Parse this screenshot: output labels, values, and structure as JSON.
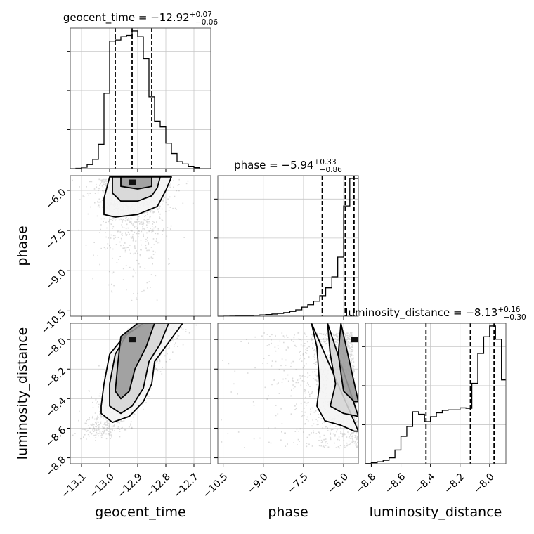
{
  "chart_data": {
    "type": "corner",
    "parameters": [
      "geocent_time",
      "phase",
      "luminosity_distance"
    ],
    "axis_labels": [
      "geocent_time",
      "phase",
      "luminosity_distance"
    ],
    "ranges": {
      "geocent_time": [
        -13.14,
        -12.64
      ],
      "phase": [
        -10.7,
        -5.45
      ],
      "luminosity_distance": [
        -8.84,
        -7.89
      ]
    },
    "ticks": {
      "geocent_time": {
        "values": [
          -13.1,
          -13.0,
          -12.9,
          -12.8,
          -12.7
        ],
        "labels": [
          "−13.1",
          "−13.0",
          "−12.9",
          "−12.8",
          "−12.7"
        ]
      },
      "phase": {
        "values": [
          -10.5,
          -9.0,
          -7.5,
          -6.0
        ],
        "labels": [
          "−10.5",
          "−9.0",
          "−7.5",
          "−6.0"
        ]
      },
      "luminosity_distance": {
        "values": [
          -8.8,
          -8.6,
          -8.4,
          -8.2,
          -8.0
        ],
        "labels": [
          "−8.8",
          "−8.6",
          "−8.4",
          "−8.2",
          "−8.0"
        ]
      }
    },
    "summaries": [
      {
        "param": "geocent_time",
        "prefix": "geocent_time = ",
        "median": "−12.92",
        "plus": "+0.07",
        "minus": "−0.06",
        "quantiles": [
          -12.98,
          -12.92,
          -12.85
        ]
      },
      {
        "param": "phase",
        "prefix": "phase = ",
        "median": "−5.94",
        "plus": "+0.33",
        "minus": "−0.86",
        "quantiles": [
          -6.8,
          -5.94,
          -5.61
        ]
      },
      {
        "param": "luminosity_distance",
        "prefix": "luminosity_distance = ",
        "median": "−8.13",
        "plus": "+0.16",
        "minus": "−0.30",
        "quantiles": [
          -8.43,
          -8.13,
          -7.97
        ]
      }
    ],
    "histograms": {
      "geocent_time": {
        "bin_edges": [
          -13.14,
          -13.12,
          -13.1,
          -13.08,
          -13.06,
          -13.04,
          -13.02,
          -13.0,
          -12.98,
          -12.96,
          -12.94,
          -12.92,
          -12.9,
          -12.88,
          -12.86,
          -12.84,
          -12.82,
          -12.8,
          -12.78,
          -12.76,
          -12.74,
          -12.72,
          -12.7,
          -12.68,
          -12.66,
          -12.64
        ],
        "counts": [
          0,
          3,
          12,
          35,
          80,
          210,
          650,
          1100,
          1110,
          1140,
          1150,
          1190,
          1140,
          950,
          620,
          410,
          360,
          220,
          130,
          60,
          40,
          20,
          8,
          0,
          0
        ]
      },
      "phase": {
        "bin_edges": [
          -10.7,
          -10.48,
          -10.25,
          -10.03,
          -9.8,
          -9.58,
          -9.36,
          -9.13,
          -8.91,
          -8.68,
          -8.46,
          -8.24,
          -8.01,
          -7.79,
          -7.56,
          -7.34,
          -7.12,
          -6.89,
          -6.67,
          -6.44,
          -6.22,
          -6.0,
          -5.77,
          -5.55,
          -5.45
        ],
        "counts": [
          0,
          2,
          4,
          8,
          12,
          18,
          24,
          32,
          42,
          55,
          70,
          90,
          120,
          160,
          230,
          290,
          380,
          520,
          720,
          1000,
          1500,
          2800,
          3500,
          3500
        ]
      },
      "luminosity_distance": {
        "bin_edges": [
          -8.84,
          -8.8,
          -8.76,
          -8.72,
          -8.68,
          -8.64,
          -8.6,
          -8.56,
          -8.52,
          -8.48,
          -8.44,
          -8.4,
          -8.36,
          -8.32,
          -8.28,
          -8.24,
          -8.2,
          -8.16,
          -8.12,
          -8.08,
          -8.04,
          -8.0,
          -7.96,
          -7.92,
          -7.89
        ],
        "counts": [
          5,
          20,
          40,
          70,
          120,
          280,
          560,
          760,
          1060,
          1010,
          860,
          960,
          1040,
          1090,
          1100,
          1100,
          1140,
          1130,
          1640,
          2250,
          2590,
          2810,
          2540,
          1710
        ]
      }
    },
    "density_2d": [
      {
        "x": "geocent_time",
        "y": "phase",
        "mode": [
          -12.92,
          -5.7
        ],
        "contour_levels": [
          "0.39",
          "0.86",
          "0.99"
        ],
        "contours": [
          [
            [
              -13.0,
              -5.5
            ],
            [
              -13.02,
              -6.3
            ],
            [
              -13.02,
              -6.9
            ],
            [
              -12.98,
              -7.0
            ],
            [
              -12.9,
              -6.9
            ],
            [
              -12.83,
              -6.6
            ],
            [
              -12.8,
              -6.0
            ],
            [
              -12.78,
              -5.5
            ]
          ],
          [
            [
              -12.99,
              -5.5
            ],
            [
              -12.99,
              -6.1
            ],
            [
              -12.96,
              -6.4
            ],
            [
              -12.9,
              -6.4
            ],
            [
              -12.85,
              -6.2
            ],
            [
              -12.83,
              -5.9
            ],
            [
              -12.82,
              -5.5
            ]
          ],
          [
            [
              -12.96,
              -5.5
            ],
            [
              -12.96,
              -5.85
            ],
            [
              -12.9,
              -5.95
            ],
            [
              -12.85,
              -5.85
            ],
            [
              -12.85,
              -5.5
            ]
          ]
        ]
      },
      {
        "x": "geocent_time",
        "y": "luminosity_distance",
        "mode": [
          -12.92,
          -8.0
        ],
        "contours": [
          [
            [
              -13.03,
              -8.5
            ],
            [
              -12.99,
              -8.56
            ],
            [
              -12.93,
              -8.52
            ],
            [
              -12.88,
              -8.42
            ],
            [
              -12.85,
              -8.3
            ],
            [
              -12.84,
              -8.15
            ],
            [
              -12.79,
              -8.02
            ],
            [
              -12.74,
              -7.89
            ],
            [
              -12.86,
              -7.89
            ],
            [
              -12.94,
              -7.96
            ],
            [
              -13.0,
              -8.1
            ],
            [
              -13.02,
              -8.3
            ],
            [
              -13.03,
              -8.45
            ]
          ],
          [
            [
              -13.0,
              -8.45
            ],
            [
              -12.96,
              -8.5
            ],
            [
              -12.92,
              -8.45
            ],
            [
              -12.88,
              -8.33
            ],
            [
              -12.86,
              -8.15
            ],
            [
              -12.82,
              -8.03
            ],
            [
              -12.79,
              -7.89
            ],
            [
              -12.88,
              -7.89
            ],
            [
              -12.94,
              -7.97
            ],
            [
              -12.98,
              -8.1
            ],
            [
              -13.0,
              -8.3
            ]
          ],
          [
            [
              -12.98,
              -8.35
            ],
            [
              -12.96,
              -8.4
            ],
            [
              -12.93,
              -8.35
            ],
            [
              -12.91,
              -8.2
            ],
            [
              -12.87,
              -8.05
            ],
            [
              -12.84,
              -7.89
            ],
            [
              -12.9,
              -7.89
            ],
            [
              -12.96,
              -7.98
            ],
            [
              -12.97,
              -8.15
            ]
          ]
        ]
      },
      {
        "x": "phase",
        "y": "luminosity_distance",
        "mode": [
          -5.6,
          -8.0
        ],
        "contours": [
          [
            [
              -7.2,
              -7.89
            ],
            [
              -7.0,
              -8.05
            ],
            [
              -6.9,
              -8.3
            ],
            [
              -7.0,
              -8.45
            ],
            [
              -6.7,
              -8.55
            ],
            [
              -6.1,
              -8.58
            ],
            [
              -5.6,
              -8.62
            ],
            [
              -5.45,
              -8.62
            ]
          ],
          [
            [
              -6.6,
              -7.89
            ],
            [
              -6.5,
              -8.1
            ],
            [
              -6.3,
              -8.3
            ],
            [
              -6.5,
              -8.45
            ],
            [
              -6.0,
              -8.5
            ],
            [
              -5.45,
              -8.52
            ]
          ],
          [
            [
              -6.1,
              -7.89
            ],
            [
              -6.2,
              -8.1
            ],
            [
              -6.0,
              -8.35
            ],
            [
              -5.6,
              -8.42
            ],
            [
              -5.45,
              -8.42
            ]
          ]
        ]
      }
    ]
  }
}
